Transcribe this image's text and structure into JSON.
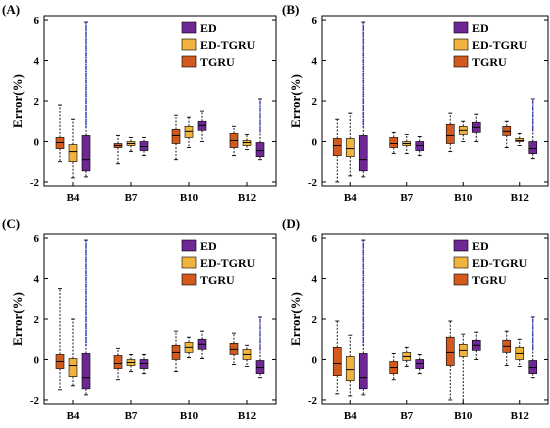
{
  "chart_data": [
    {
      "type": "box",
      "panel_label": "(A)",
      "ylabel": "Error(%)",
      "ylim": [
        -2.2,
        6.2
      ],
      "yticks": [
        -2,
        0,
        2,
        4,
        6
      ],
      "groups": [
        "B4",
        "B7",
        "B10",
        "B12"
      ],
      "legend": {
        "placement": "top-right",
        "entries": [
          "ED",
          "ED-TGRU",
          "TGRU"
        ]
      },
      "series": [
        {
          "name": "TGRU",
          "color": "#d25a1e",
          "boxes": [
            {
              "group": "B4",
              "q1": -0.35,
              "median": -0.05,
              "q3": 0.2,
              "whisker_low": -1.0,
              "whisker_high": 1.8
            },
            {
              "group": "B7",
              "q1": -0.3,
              "median": -0.2,
              "q3": -0.1,
              "whisker_low": -1.1,
              "whisker_high": 0.3
            },
            {
              "group": "B10",
              "q1": -0.1,
              "median": 0.3,
              "q3": 0.6,
              "whisker_low": -0.9,
              "whisker_high": 1.3
            },
            {
              "group": "B12",
              "q1": -0.3,
              "median": 0.05,
              "q3": 0.4,
              "whisker_low": -0.7,
              "whisker_high": 0.75
            }
          ]
        },
        {
          "name": "ED-TGRU",
          "color": "#f0b43c",
          "boxes": [
            {
              "group": "B4",
              "q1": -1.0,
              "median": -0.5,
              "q3": -0.15,
              "whisker_low": -1.8,
              "whisker_high": 1.1
            },
            {
              "group": "B7",
              "q1": -0.2,
              "median": -0.1,
              "q3": 0.0,
              "whisker_low": -0.5,
              "whisker_high": 0.2
            },
            {
              "group": "B10",
              "q1": 0.2,
              "median": 0.5,
              "q3": 0.75,
              "whisker_low": -0.3,
              "whisker_high": 1.2
            },
            {
              "group": "B12",
              "q1": -0.2,
              "median": -0.05,
              "q3": 0.05,
              "whisker_low": -0.4,
              "whisker_high": 0.35
            }
          ]
        },
        {
          "name": "ED",
          "color": "#6e2896",
          "boxes": [
            {
              "group": "B4",
              "q1": -1.45,
              "median": -0.9,
              "q3": 0.3,
              "whisker_low": -1.75,
              "whisker_high": 5.9
            },
            {
              "group": "B7",
              "q1": -0.45,
              "median": -0.25,
              "q3": 0.0,
              "whisker_low": -0.7,
              "whisker_high": 0.2
            },
            {
              "group": "B10",
              "q1": 0.55,
              "median": 0.8,
              "q3": 1.0,
              "whisker_low": 0.0,
              "whisker_high": 1.5
            },
            {
              "group": "B12",
              "q1": -0.75,
              "median": -0.45,
              "q3": -0.05,
              "whisker_low": -0.9,
              "whisker_high": 2.1
            }
          ]
        }
      ]
    },
    {
      "type": "box",
      "panel_label": "(B)",
      "ylabel": "Error(%)",
      "ylim": [
        -2.2,
        6.2
      ],
      "yticks": [
        -2,
        0,
        2,
        4,
        6
      ],
      "groups": [
        "B4",
        "B7",
        "B10",
        "B12"
      ],
      "legend": {
        "placement": "top-right",
        "entries": [
          "ED",
          "ED-TGRU",
          "TGRU"
        ]
      },
      "series": [
        {
          "name": "TGRU",
          "color": "#d25a1e",
          "boxes": [
            {
              "group": "B4",
              "q1": -0.7,
              "median": -0.2,
              "q3": 0.15,
              "whisker_low": -2.0,
              "whisker_high": 1.1
            },
            {
              "group": "B7",
              "q1": -0.3,
              "median": -0.1,
              "q3": 0.2,
              "whisker_low": -0.6,
              "whisker_high": 0.45
            },
            {
              "group": "B10",
              "q1": -0.1,
              "median": 0.3,
              "q3": 0.85,
              "whisker_low": -0.5,
              "whisker_high": 1.4
            },
            {
              "group": "B12",
              "q1": 0.3,
              "median": 0.5,
              "q3": 0.75,
              "whisker_low": -0.3,
              "whisker_high": 1.0
            }
          ]
        },
        {
          "name": "ED-TGRU",
          "color": "#f0b43c",
          "boxes": [
            {
              "group": "B4",
              "q1": -0.75,
              "median": -0.35,
              "q3": 0.15,
              "whisker_low": -1.7,
              "whisker_high": 1.4
            },
            {
              "group": "B7",
              "q1": -0.2,
              "median": -0.1,
              "q3": 0.0,
              "whisker_low": -0.6,
              "whisker_high": 0.35
            },
            {
              "group": "B10",
              "q1": 0.35,
              "median": 0.55,
              "q3": 0.75,
              "whisker_low": 0.0,
              "whisker_high": 1.0
            },
            {
              "group": "B12",
              "q1": 0.0,
              "median": 0.05,
              "q3": 0.15,
              "whisker_low": -0.2,
              "whisker_high": 0.4
            }
          ]
        },
        {
          "name": "ED",
          "color": "#6e2896",
          "boxes": [
            {
              "group": "B4",
              "q1": -1.45,
              "median": -0.9,
              "q3": 0.3,
              "whisker_low": -1.75,
              "whisker_high": 5.9
            },
            {
              "group": "B7",
              "q1": -0.45,
              "median": -0.2,
              "q3": 0.0,
              "whisker_low": -0.7,
              "whisker_high": 0.25
            },
            {
              "group": "B10",
              "q1": 0.45,
              "median": 0.7,
              "q3": 0.95,
              "whisker_low": 0.0,
              "whisker_high": 1.35
            },
            {
              "group": "B12",
              "q1": -0.6,
              "median": -0.35,
              "q3": 0.0,
              "whisker_low": -0.85,
              "whisker_high": 2.1
            }
          ]
        }
      ]
    },
    {
      "type": "box",
      "panel_label": "(C)",
      "ylabel": "Error(%)",
      "ylim": [
        -2.2,
        6.2
      ],
      "yticks": [
        -2,
        0,
        2,
        4,
        6
      ],
      "groups": [
        "B4",
        "B7",
        "B10",
        "B12"
      ],
      "legend": {
        "placement": "top-right",
        "entries": [
          "ED",
          "ED-TGRU",
          "TGRU"
        ]
      },
      "series": [
        {
          "name": "TGRU",
          "color": "#d25a1e",
          "boxes": [
            {
              "group": "B4",
              "q1": -0.45,
              "median": -0.1,
              "q3": 0.25,
              "whisker_low": -1.5,
              "whisker_high": 3.5
            },
            {
              "group": "B7",
              "q1": -0.45,
              "median": -0.2,
              "q3": 0.2,
              "whisker_low": -1.0,
              "whisker_high": 0.55
            },
            {
              "group": "B10",
              "q1": 0.0,
              "median": 0.35,
              "q3": 0.7,
              "whisker_low": -0.6,
              "whisker_high": 1.4
            },
            {
              "group": "B12",
              "q1": 0.25,
              "median": 0.5,
              "q3": 0.8,
              "whisker_low": -0.25,
              "whisker_high": 1.3
            }
          ]
        },
        {
          "name": "ED-TGRU",
          "color": "#f0b43c",
          "boxes": [
            {
              "group": "B4",
              "q1": -0.85,
              "median": -0.3,
              "q3": 0.05,
              "whisker_low": -1.3,
              "whisker_high": 2.0
            },
            {
              "group": "B7",
              "q1": -0.3,
              "median": -0.15,
              "q3": 0.0,
              "whisker_low": -0.6,
              "whisker_high": 0.25
            },
            {
              "group": "B10",
              "q1": 0.35,
              "median": 0.6,
              "q3": 0.85,
              "whisker_low": 0.1,
              "whisker_high": 1.1
            },
            {
              "group": "B12",
              "q1": 0.0,
              "median": 0.25,
              "q3": 0.5,
              "whisker_low": -0.35,
              "whisker_high": 0.7
            }
          ]
        },
        {
          "name": "ED",
          "color": "#6e2896",
          "boxes": [
            {
              "group": "B4",
              "q1": -1.45,
              "median": -0.9,
              "q3": 0.3,
              "whisker_low": -1.75,
              "whisker_high": 5.9
            },
            {
              "group": "B7",
              "q1": -0.45,
              "median": -0.2,
              "q3": 0.0,
              "whisker_low": -0.7,
              "whisker_high": 0.25
            },
            {
              "group": "B10",
              "q1": 0.5,
              "median": 0.75,
              "q3": 1.0,
              "whisker_low": 0.05,
              "whisker_high": 1.4
            },
            {
              "group": "B12",
              "q1": -0.7,
              "median": -0.4,
              "q3": -0.05,
              "whisker_low": -0.9,
              "whisker_high": 2.1
            }
          ]
        }
      ]
    },
    {
      "type": "box",
      "panel_label": "(D)",
      "ylabel": "Error(%)",
      "ylim": [
        -2.2,
        6.2
      ],
      "yticks": [
        -2,
        0,
        2,
        4,
        6
      ],
      "groups": [
        "B4",
        "B7",
        "B10",
        "B12"
      ],
      "legend": {
        "placement": "top-right",
        "entries": [
          "ED",
          "ED-TGRU",
          "TGRU"
        ]
      },
      "series": [
        {
          "name": "TGRU",
          "color": "#d25a1e",
          "boxes": [
            {
              "group": "B4",
              "q1": -0.8,
              "median": -0.2,
              "q3": 0.6,
              "whisker_low": -1.7,
              "whisker_high": 1.9
            },
            {
              "group": "B7",
              "q1": -0.7,
              "median": -0.4,
              "q3": -0.1,
              "whisker_low": -1.0,
              "whisker_high": 0.3
            },
            {
              "group": "B10",
              "q1": -0.3,
              "median": 0.35,
              "q3": 1.1,
              "whisker_low": -2.0,
              "whisker_high": 1.9
            },
            {
              "group": "B12",
              "q1": 0.35,
              "median": 0.65,
              "q3": 0.95,
              "whisker_low": -0.3,
              "whisker_high": 1.4
            }
          ]
        },
        {
          "name": "ED-TGRU",
          "color": "#f0b43c",
          "boxes": [
            {
              "group": "B4",
              "q1": -1.05,
              "median": -0.5,
              "q3": 0.15,
              "whisker_low": -1.8,
              "whisker_high": 1.2
            },
            {
              "group": "B7",
              "q1": -0.05,
              "median": 0.15,
              "q3": 0.35,
              "whisker_low": -0.35,
              "whisker_high": 0.6
            },
            {
              "group": "B10",
              "q1": 0.15,
              "median": 0.45,
              "q3": 0.75,
              "whisker_low": -2.2,
              "whisker_high": 1.25
            },
            {
              "group": "B12",
              "q1": 0.0,
              "median": 0.3,
              "q3": 0.6,
              "whisker_low": -0.35,
              "whisker_high": 1.0
            }
          ]
        },
        {
          "name": "ED",
          "color": "#6e2896",
          "boxes": [
            {
              "group": "B4",
              "q1": -1.45,
              "median": -0.9,
              "q3": 0.3,
              "whisker_low": -1.75,
              "whisker_high": 5.9
            },
            {
              "group": "B7",
              "q1": -0.45,
              "median": -0.2,
              "q3": 0.0,
              "whisker_low": -0.7,
              "whisker_high": 0.25
            },
            {
              "group": "B10",
              "q1": 0.45,
              "median": 0.7,
              "q3": 0.95,
              "whisker_low": 0.0,
              "whisker_high": 1.35
            },
            {
              "group": "B12",
              "q1": -0.7,
              "median": -0.4,
              "q3": -0.05,
              "whisker_low": -0.9,
              "whisker_high": 2.1
            }
          ]
        }
      ]
    }
  ]
}
